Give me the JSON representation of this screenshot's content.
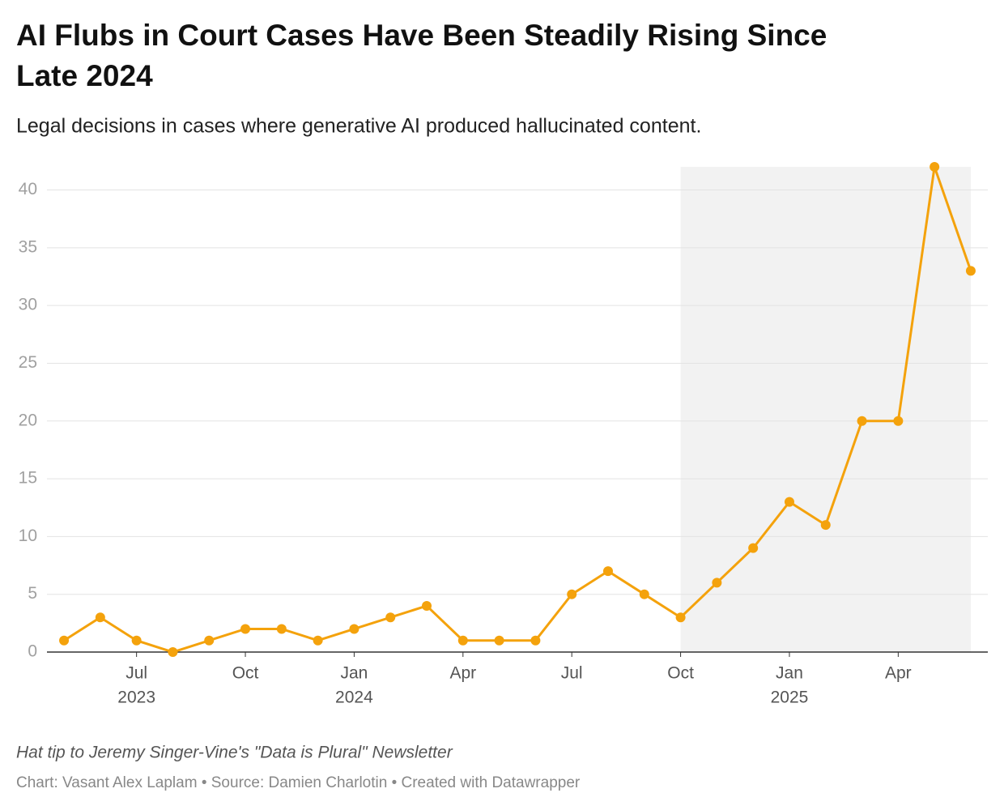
{
  "chart_data": {
    "type": "line",
    "title_lines": [
      "AI Flubs in Court Cases Have Been Steadily Rising Since",
      "Late 2024"
    ],
    "subtitle": "Legal decisions in cases where generative AI produced hallucinated content.",
    "x": [
      "2023-05",
      "2023-06",
      "2023-07",
      "2023-08",
      "2023-09",
      "2023-10",
      "2023-11",
      "2023-12",
      "2024-01",
      "2024-02",
      "2024-03",
      "2024-04",
      "2024-05",
      "2024-06",
      "2024-07",
      "2024-08",
      "2024-09",
      "2024-10",
      "2024-11",
      "2024-12",
      "2025-01",
      "2025-02",
      "2025-03",
      "2025-04",
      "2025-05",
      "2025-06"
    ],
    "series": [
      {
        "name": "Legal decisions",
        "color": "#f4a20c",
        "values": [
          1,
          3,
          1,
          0,
          1,
          2,
          2,
          1,
          2,
          3,
          4,
          1,
          1,
          1,
          5,
          7,
          5,
          3,
          6,
          9,
          13,
          11,
          20,
          20,
          42,
          33
        ]
      }
    ],
    "ylim": [
      0,
      42
    ],
    "yticks": [
      0,
      5,
      10,
      15,
      20,
      25,
      30,
      35,
      40
    ],
    "xticks": [
      {
        "value": "2023-07",
        "label": "Jul",
        "sublabel": "2023"
      },
      {
        "value": "2023-10",
        "label": "Oct"
      },
      {
        "value": "2024-01",
        "label": "Jan",
        "sublabel": "2024"
      },
      {
        "value": "2024-04",
        "label": "Apr"
      },
      {
        "value": "2024-07",
        "label": "Jul"
      },
      {
        "value": "2024-10",
        "label": "Oct"
      },
      {
        "value": "2025-01",
        "label": "Jan",
        "sublabel": "2025"
      },
      {
        "value": "2025-04",
        "label": "Apr"
      }
    ],
    "highlight": {
      "from": "2024-10",
      "to": "2025-06",
      "color": "#f2f2f2"
    },
    "grid": true,
    "note": "Hat tip to Jeremy Singer-Vine's \"Data is Plural\" Newsletter",
    "credit": "Chart: Vasant Alex Laplam • Source: Damien Charlotin • Created with Datawrapper"
  }
}
